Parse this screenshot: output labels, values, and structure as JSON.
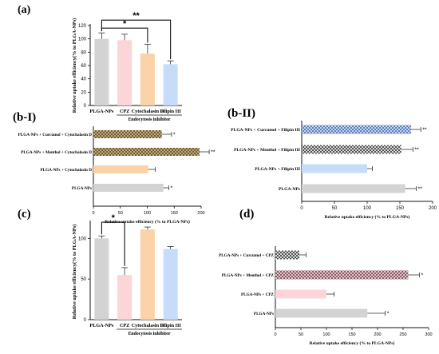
{
  "panels": {
    "a": "(a)",
    "b1": "(b-I)",
    "b2": "(b-II)",
    "c": "(c)",
    "d": "(d)"
  },
  "colors": {
    "gray": "#d3d3d3",
    "pink": "#fcd5d8",
    "orange": "#fcd3a8",
    "blue": "#c6dcf8",
    "woven_fill": "#d8c08a",
    "woven_line": "#5a4a2a",
    "check_fill": "#ffffff",
    "check_line": "#3a3a3a",
    "blue_check_line": "#4a6fb0",
    "pink_check_line": "#7a4a55"
  },
  "chart_data": [
    {
      "id": "a",
      "type": "bar",
      "orientation": "vertical",
      "ylabel": "Relative uptake efficiency(% to PLGA-NPs)",
      "xgroup_label": "Endocytosis inhibitor",
      "ylim": [
        0,
        120
      ],
      "yticks": [
        0,
        20,
        40,
        60,
        80,
        100,
        120
      ],
      "categories": [
        "PLGA-NPs",
        "CPZ",
        "Cytochalasin D",
        "Filipin III"
      ],
      "values": [
        100,
        98,
        78,
        62
      ],
      "errors": [
        9,
        9,
        14,
        5
      ],
      "colors": [
        "#d3d3d3",
        "#fcd5d8",
        "#fcd3a8",
        "#c6dcf8"
      ],
      "significance": [
        {
          "from": 0,
          "to": 2,
          "label": "*"
        },
        {
          "from": 0,
          "to": 3,
          "label": "**"
        }
      ]
    },
    {
      "id": "b1",
      "type": "bar",
      "orientation": "horizontal",
      "xlabel": "Relative uptake efficiency (% to PLGA-NPs)",
      "xlim": [
        0,
        200
      ],
      "xticks": [
        0,
        50,
        100,
        150,
        200
      ],
      "categories": [
        "PLGA-NPs + Curcumol + Cytochalasin D",
        "PLGA-NPs + Menthol + Cytochalasin D",
        "PLGA-NPs + Cytochalasin D",
        "PLGA-NPs"
      ],
      "values": [
        127,
        197,
        102,
        130
      ],
      "errors": [
        18,
        18,
        13,
        10
      ],
      "patterns": [
        "woven",
        "woven",
        "plain-orange",
        "plain-gray"
      ],
      "marks": [
        "*",
        "**",
        "",
        "*"
      ]
    },
    {
      "id": "b2",
      "type": "bar",
      "orientation": "horizontal",
      "xlabel": "Relative uptake efficiency (% to PLGA-NPs)",
      "xlim": [
        0,
        200
      ],
      "xticks": [
        0,
        50,
        100,
        150,
        200
      ],
      "categories": [
        "PLGA-NPs + Curcumol + Filipin III",
        "PLGA-NPs + Menthol + Filipin III",
        "PLGA-NPs + Filipin III",
        "PLGA-NPs"
      ],
      "values": [
        167,
        152,
        100,
        158
      ],
      "errors": [
        15,
        18,
        8,
        17
      ],
      "patterns": [
        "check-blue",
        "check-dark",
        "plain-blue",
        "plain-gray"
      ],
      "marks": [
        "**",
        "**",
        "",
        "**"
      ]
    },
    {
      "id": "c",
      "type": "bar",
      "orientation": "vertical",
      "ylabel": "Relative uptake efficiency(% to PLGA-NPs)",
      "xgroup_label": "Endocytosis inhibitor",
      "ylim": [
        0,
        120
      ],
      "yticks": [
        0,
        50,
        100
      ],
      "categories": [
        "PLGA-NPs",
        "CPZ",
        "Cytochalasin D",
        "Filipin III"
      ],
      "values": [
        100,
        55,
        111,
        87
      ],
      "errors": [
        3,
        9,
        3,
        3
      ],
      "colors": [
        "#d3d3d3",
        "#fcd5d8",
        "#fcd3a8",
        "#c6dcf8"
      ],
      "significance": [
        {
          "from": 0,
          "to": 1,
          "label": "*"
        }
      ]
    },
    {
      "id": "d",
      "type": "bar",
      "orientation": "horizontal",
      "xlabel": "Relative uptake efficiency (% to PLGA-NPs)",
      "xlim": [
        0,
        300
      ],
      "xticks": [
        0,
        50,
        100,
        150,
        200,
        250,
        300
      ],
      "categories": [
        "PLGA-NPs + Curcumol + CPZ",
        "PLGA-NPs + Menthol + CPZ",
        "PLGA-NPs + CPZ",
        "PLGA-NPs"
      ],
      "values": [
        47,
        260,
        100,
        180
      ],
      "errors": [
        13,
        22,
        15,
        35
      ],
      "patterns": [
        "check-dark",
        "check-pink",
        "plain-pink",
        "plain-gray"
      ],
      "marks": [
        "",
        "*",
        "",
        "*"
      ]
    }
  ]
}
